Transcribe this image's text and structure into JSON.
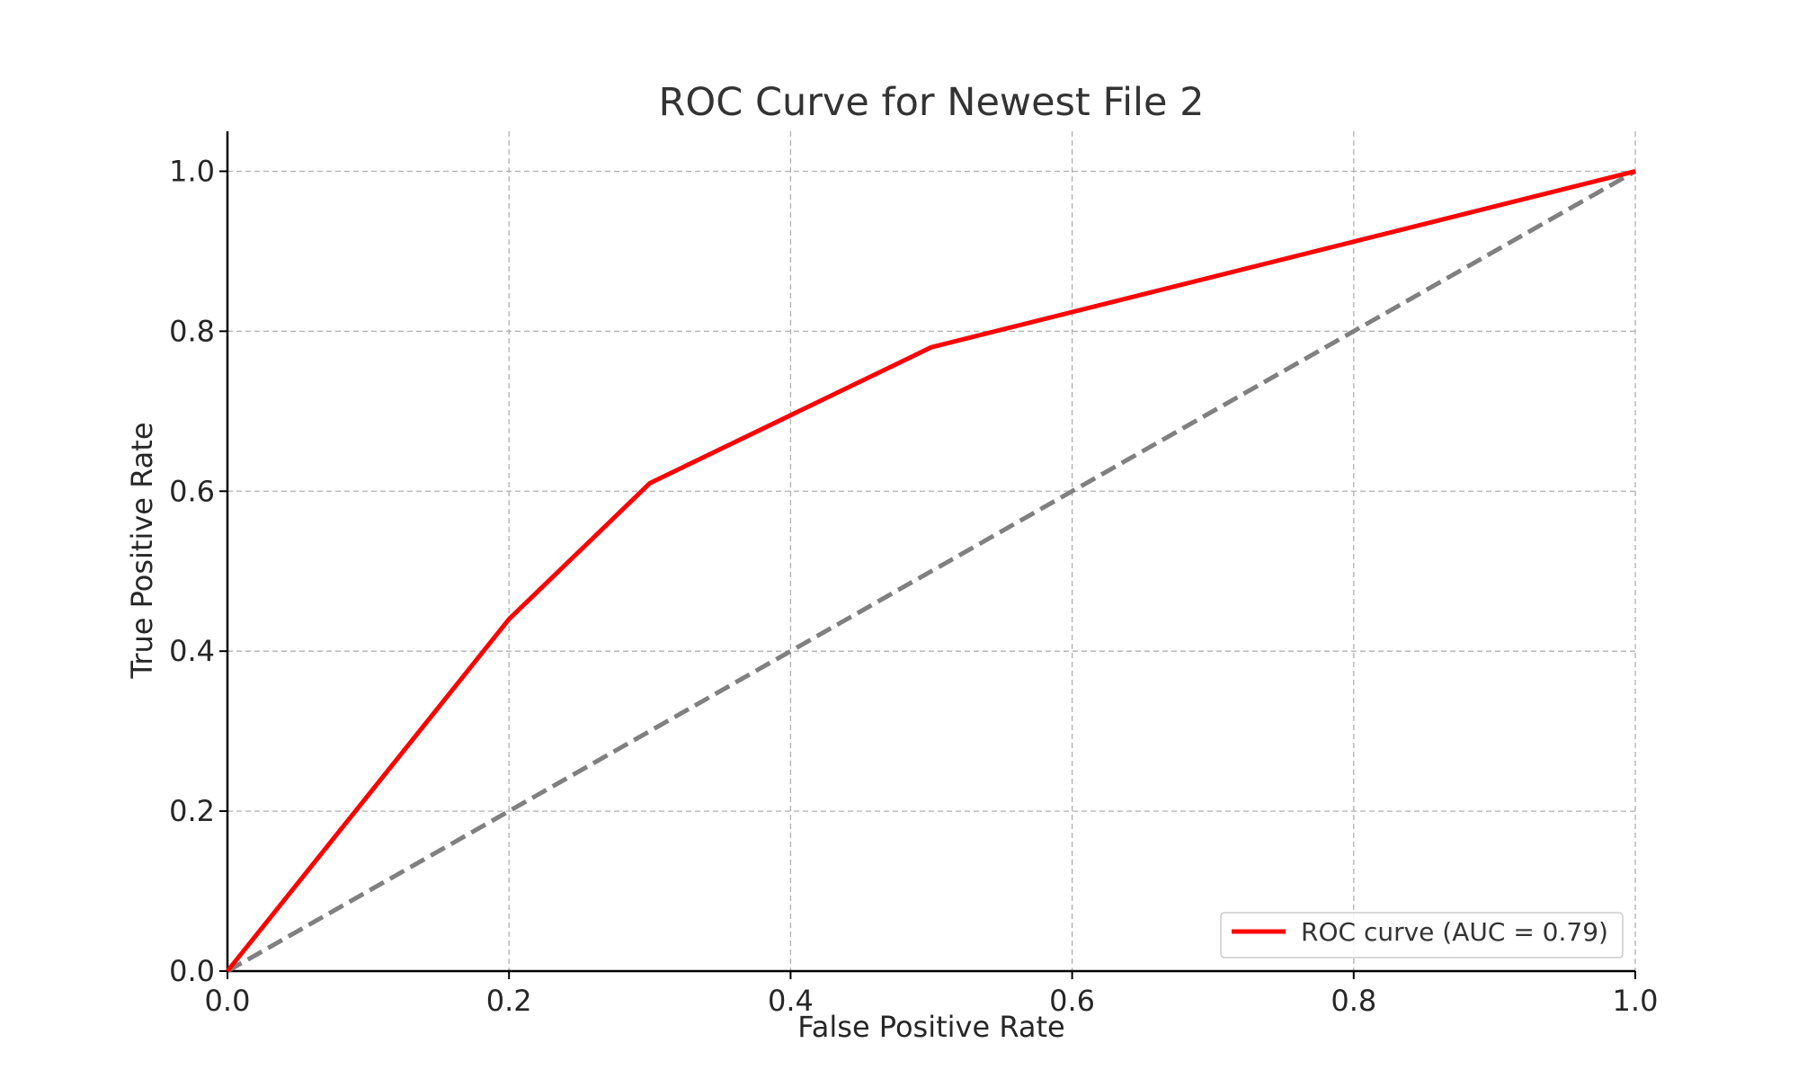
{
  "chart_data": {
    "type": "line",
    "title": "ROC Curve for Newest File 2",
    "xlabel": "False Positive Rate",
    "ylabel": "True Positive Rate",
    "xlim": [
      0.0,
      1.0
    ],
    "ylim": [
      0.0,
      1.05
    ],
    "x_ticks": [
      "0.0",
      "0.2",
      "0.4",
      "0.6",
      "0.8",
      "1.0"
    ],
    "y_ticks": [
      "0.0",
      "0.2",
      "0.4",
      "0.6",
      "0.8",
      "1.0"
    ],
    "grid": true,
    "legend_position": "bottom-right",
    "series": [
      {
        "name": "ROC curve (AUC = 0.79)",
        "color": "#ff0000",
        "style": "solid",
        "x": [
          0.0,
          0.2,
          0.3,
          0.5,
          1.0
        ],
        "y": [
          0.0,
          0.44,
          0.61,
          0.78,
          1.0
        ]
      },
      {
        "color": "#808080",
        "style": "dashed",
        "x": [
          0.0,
          1.0
        ],
        "y": [
          0.0,
          1.0
        ]
      }
    ]
  }
}
